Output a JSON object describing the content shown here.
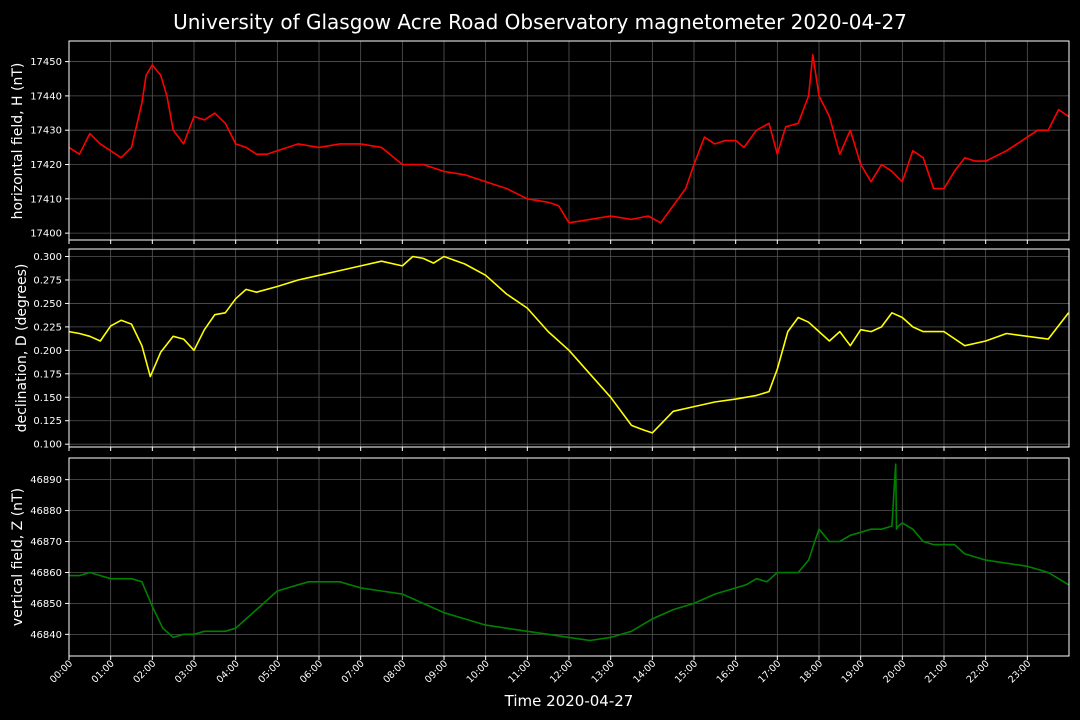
{
  "chart_data": {
    "type": "line",
    "title": "University of Glasgow Acre Road Observatory magnetometer 2020-04-27",
    "xlabel": "Time 2020-04-27",
    "x_unit": "hour of day (UTC)",
    "x_ticks": [
      "00:00",
      "01:00",
      "02:00",
      "03:00",
      "04:00",
      "05:00",
      "06:00",
      "07:00",
      "08:00",
      "09:00",
      "10:00",
      "11:00",
      "12:00",
      "13:00",
      "14:00",
      "15:00",
      "16:00",
      "17:00",
      "18:00",
      "19:00",
      "20:00",
      "21:00",
      "22:00",
      "23:00"
    ],
    "xlim": [
      0,
      24
    ],
    "grid": true,
    "panels": [
      {
        "ylabel": "horizontal field, H (nT)",
        "color": "#ff0000",
        "ylim": [
          17398,
          17456
        ],
        "yticks": [
          17400,
          17410,
          17420,
          17430,
          17440,
          17450
        ],
        "x": [
          0,
          0.25,
          0.5,
          0.75,
          1.0,
          1.25,
          1.5,
          1.75,
          1.85,
          2.0,
          2.2,
          2.35,
          2.5,
          2.75,
          3.0,
          3.25,
          3.5,
          3.75,
          4.0,
          4.25,
          4.5,
          4.75,
          5.0,
          5.5,
          6.0,
          6.5,
          7.0,
          7.5,
          8.0,
          8.5,
          9.0,
          9.5,
          10.0,
          10.5,
          11.0,
          11.5,
          11.75,
          12.0,
          12.5,
          13.0,
          13.5,
          13.9,
          14.2,
          14.5,
          14.8,
          15.0,
          15.25,
          15.5,
          15.75,
          16.0,
          16.2,
          16.5,
          16.8,
          17.0,
          17.2,
          17.5,
          17.75,
          17.85,
          18.0,
          18.25,
          18.5,
          18.75,
          19.0,
          19.25,
          19.5,
          19.75,
          20.0,
          20.25,
          20.5,
          20.75,
          21.0,
          21.25,
          21.5,
          21.75,
          22.0,
          22.5,
          23.0,
          23.25,
          23.5,
          23.75,
          23.99
        ],
        "values": [
          17425,
          17423,
          17429,
          17426,
          17424,
          17422,
          17425,
          17438,
          17446,
          17449,
          17446,
          17440,
          17430,
          17426,
          17434,
          17433,
          17435,
          17432,
          17426,
          17425,
          17423,
          17423,
          17424,
          17426,
          17425,
          17426,
          17426,
          17425,
          17420,
          17420,
          17418,
          17417,
          17415,
          17413,
          17410,
          17409,
          17408,
          17403,
          17404,
          17405,
          17404,
          17405,
          17403,
          17408,
          17413,
          17420,
          17428,
          17426,
          17427,
          17427,
          17425,
          17430,
          17432,
          17423,
          17431,
          17432,
          17440,
          17452,
          17440,
          17434,
          17423,
          17430,
          17420,
          17415,
          17420,
          17418,
          17415,
          17424,
          17422,
          17413,
          17413,
          17418,
          17422,
          17421,
          17421,
          17424,
          17428,
          17430,
          17430,
          17436,
          17434
        ]
      },
      {
        "ylabel": "declination, D (degrees)",
        "color": "#ffff00",
        "ylim": [
          0.097,
          0.308
        ],
        "yticks": [
          0.1,
          0.125,
          0.15,
          0.175,
          0.2,
          0.225,
          0.25,
          0.275,
          0.3
        ],
        "ytick_labels": [
          "0.100",
          "0.125",
          "0.150",
          "0.175",
          "0.200",
          "0.225",
          "0.250",
          "0.275",
          "0.300"
        ],
        "x": [
          0,
          0.25,
          0.5,
          0.75,
          1.0,
          1.25,
          1.5,
          1.75,
          1.95,
          2.2,
          2.5,
          2.75,
          3.0,
          3.25,
          3.5,
          3.75,
          4.0,
          4.25,
          4.5,
          5.0,
          5.5,
          6.0,
          6.5,
          7.0,
          7.5,
          8.0,
          8.25,
          8.5,
          8.75,
          9.0,
          9.5,
          10.0,
          10.5,
          11.0,
          11.5,
          12.0,
          12.5,
          13.0,
          13.5,
          13.8,
          14.0,
          14.5,
          15.0,
          15.5,
          16.0,
          16.5,
          16.8,
          17.0,
          17.25,
          17.5,
          17.75,
          18.0,
          18.25,
          18.5,
          18.75,
          19.0,
          19.25,
          19.5,
          19.75,
          20.0,
          20.25,
          20.5,
          21.0,
          21.5,
          22.0,
          22.5,
          23.0,
          23.5,
          23.99
        ],
        "values": [
          0.22,
          0.218,
          0.215,
          0.21,
          0.226,
          0.232,
          0.228,
          0.205,
          0.172,
          0.198,
          0.215,
          0.212,
          0.2,
          0.222,
          0.238,
          0.24,
          0.255,
          0.265,
          0.262,
          0.268,
          0.275,
          0.28,
          0.285,
          0.29,
          0.295,
          0.29,
          0.3,
          0.298,
          0.293,
          0.3,
          0.292,
          0.28,
          0.26,
          0.245,
          0.22,
          0.2,
          0.175,
          0.15,
          0.12,
          0.115,
          0.112,
          0.135,
          0.14,
          0.145,
          0.148,
          0.152,
          0.156,
          0.18,
          0.22,
          0.235,
          0.23,
          0.22,
          0.21,
          0.22,
          0.205,
          0.222,
          0.22,
          0.225,
          0.24,
          0.235,
          0.225,
          0.22,
          0.22,
          0.205,
          0.21,
          0.218,
          0.215,
          0.212,
          0.24
        ]
      },
      {
        "ylabel": "vertical field, Z (nT)",
        "color": "#008000",
        "ylim": [
          46833,
          46897
        ],
        "yticks": [
          46840,
          46850,
          46860,
          46870,
          46880,
          46890
        ],
        "x": [
          0,
          0.25,
          0.5,
          0.75,
          1.0,
          1.25,
          1.5,
          1.75,
          2.0,
          2.25,
          2.5,
          2.75,
          3.0,
          3.25,
          3.5,
          3.75,
          4.0,
          4.25,
          4.5,
          4.75,
          5.0,
          5.25,
          5.5,
          5.75,
          6.0,
          6.5,
          7.0,
          7.5,
          8.0,
          8.5,
          9.0,
          9.5,
          10.0,
          10.5,
          11.0,
          11.5,
          12.0,
          12.5,
          13.0,
          13.5,
          14.0,
          14.5,
          15.0,
          15.5,
          16.0,
          16.25,
          16.5,
          16.75,
          17.0,
          17.25,
          17.5,
          17.75,
          17.9,
          18.0,
          18.25,
          18.5,
          18.75,
          19.0,
          19.25,
          19.5,
          19.75,
          19.84,
          19.86,
          19.9,
          20.0,
          20.25,
          20.5,
          20.75,
          21.0,
          21.25,
          21.5,
          21.75,
          22.0,
          22.5,
          23.0,
          23.25,
          23.5,
          23.75,
          23.99
        ],
        "values": [
          46859,
          46859,
          46860,
          46859,
          46858,
          46858,
          46858,
          46857,
          46849,
          46842,
          46839,
          46840,
          46840,
          46841,
          46841,
          46841,
          46842,
          46845,
          46848,
          46851,
          46854,
          46855,
          46856,
          46857,
          46857,
          46857,
          46855,
          46854,
          46853,
          46850,
          46847,
          46845,
          46843,
          46842,
          46841,
          46840,
          46839,
          46838,
          46839,
          46841,
          46845,
          46848,
          46850,
          46853,
          46855,
          46856,
          46858,
          46857,
          46860,
          46860,
          46860,
          46864,
          46870,
          46874,
          46870,
          46870,
          46872,
          46873,
          46874,
          46874,
          46875,
          46895,
          46874,
          46875,
          46876,
          46874,
          46870,
          46869,
          46869,
          46869,
          46866,
          46865,
          46864,
          46863,
          46862,
          46861,
          46860,
          46858,
          46856
        ]
      }
    ]
  }
}
